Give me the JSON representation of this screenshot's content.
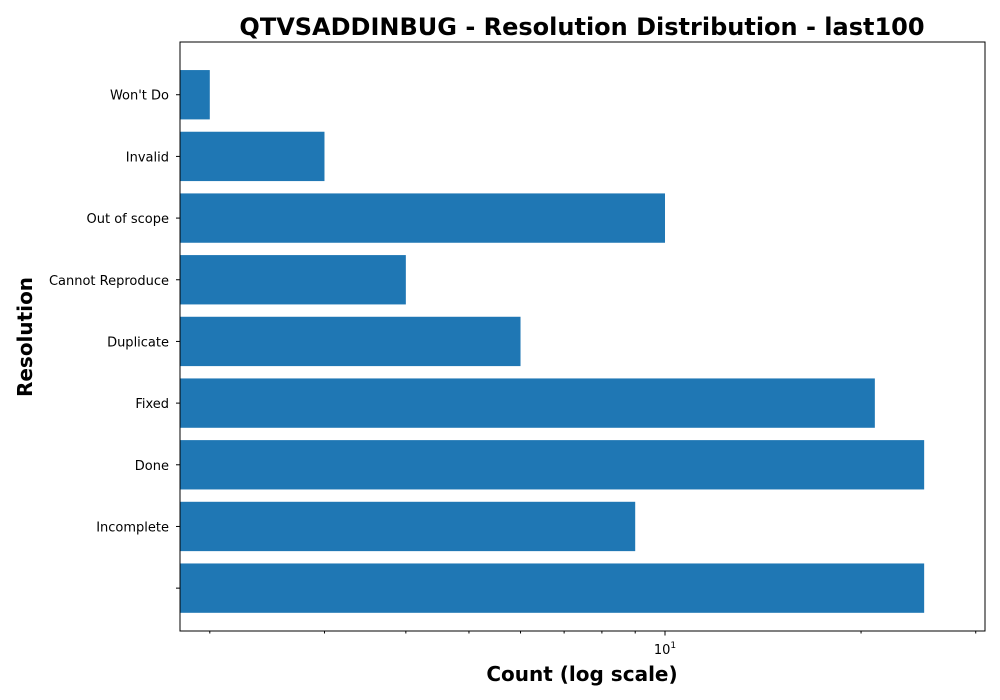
{
  "chart_data": {
    "type": "bar",
    "orientation": "horizontal",
    "title": "QTVSADDINBUG - Resolution Distribution - last100",
    "xlabel": "Count (log scale)",
    "ylabel": "Resolution",
    "x_scale": "log",
    "x_major_tick": {
      "value": 10,
      "base": "10",
      "exponent": "1"
    },
    "xlim": [
      1.8,
      31
    ],
    "bar_color": "#1f77b4",
    "grid": false,
    "categories": [
      "Won't Do",
      "Invalid",
      "Out of scope",
      "Cannot Reproduce",
      "Duplicate",
      "Fixed",
      "Done",
      "Incomplete",
      ""
    ],
    "values": [
      2,
      3,
      10,
      4,
      6,
      21,
      25,
      9,
      25
    ]
  }
}
